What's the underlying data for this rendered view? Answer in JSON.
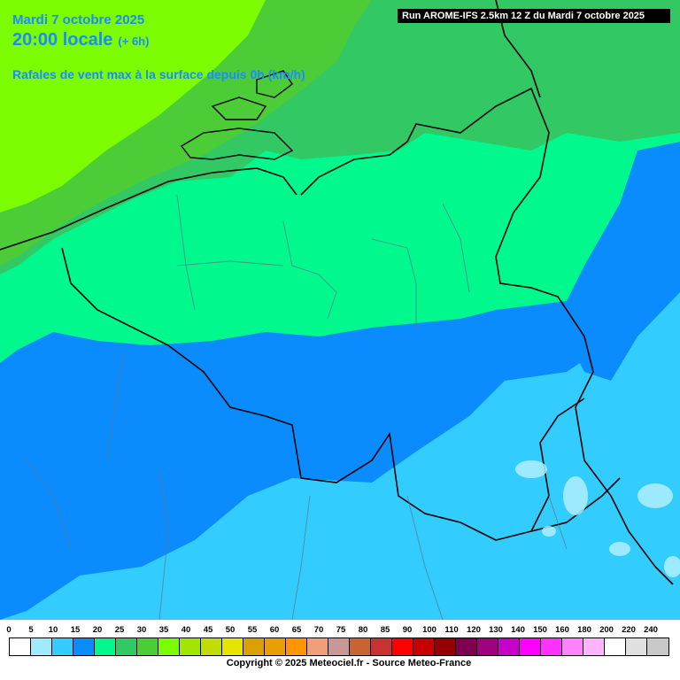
{
  "header": {
    "date": "Mardi 7 octobre 2025",
    "time": "20:00 locale",
    "offset": "(+ 6h)",
    "parameter": "Rafales de vent max à la surface depuis 0h (km/h)"
  },
  "run_label": "Run AROME-IFS 2.5km 12 Z du Mardi 7 octobre 2025",
  "map_colors": {
    "green_light": "#7cfc00",
    "green_mid": "#4ccc36",
    "green_sea": "#32c864",
    "aqua_green": "#00f88c",
    "blue_mid": "#0a8cff",
    "blue_light": "#33ccff",
    "blue_pale": "#b0f0ff",
    "border": "#000000",
    "region_border": "#6a8a8a"
  },
  "legend": {
    "labels": [
      "0",
      "5",
      "10",
      "15",
      "20",
      "25",
      "30",
      "35",
      "40",
      "45",
      "50",
      "55",
      "60",
      "65",
      "70",
      "75",
      "80",
      "85",
      "90",
      "100",
      "110",
      "120",
      "130",
      "140",
      "150",
      "160",
      "180",
      "200",
      "220",
      "240"
    ],
    "colors": [
      "#ffffff",
      "#a0eaff",
      "#33ccff",
      "#0a8cff",
      "#00f88c",
      "#32c864",
      "#4ccc36",
      "#7cfc00",
      "#a0e600",
      "#c0dc00",
      "#e4e600",
      "#d8a000",
      "#e8a000",
      "#ff9600",
      "#f0a078",
      "#c89896",
      "#c86432",
      "#c83232",
      "#ff0000",
      "#c80000",
      "#960000",
      "#800050",
      "#a00080",
      "#c800c8",
      "#ff00ff",
      "#ff32ff",
      "#ff82ff",
      "#ffb4ff",
      "#ffffff",
      "#e0e0e0",
      "#c8c8c8"
    ]
  },
  "copyright": "Copyright © 2025 Meteociel.fr - Source Meteo-France"
}
